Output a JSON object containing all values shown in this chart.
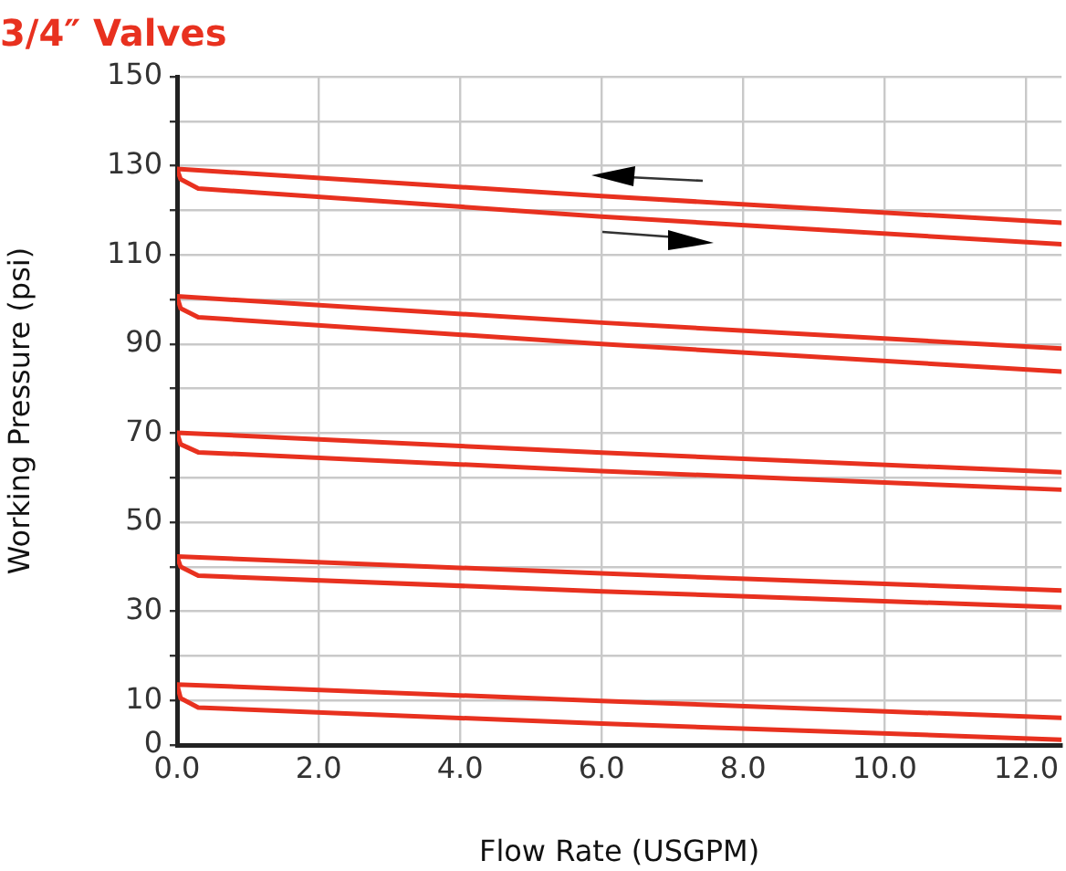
{
  "chart_data": {
    "type": "line",
    "title": "3/4″ Valves",
    "xlabel": "Flow Rate (USGPM)",
    "ylabel": "Working Pressure (psi)",
    "series": [
      {
        "color": "#e8311f",
        "x": [
          12.5,
          6,
          0,
          0.05,
          0.3,
          6,
          12.5
        ],
        "values": [
          117.2,
          123.2,
          129.3,
          127,
          124.9,
          118.6,
          112.4
        ]
      },
      {
        "color": "#e8311f",
        "x": [
          12.5,
          6,
          0,
          0.05,
          0.3,
          6,
          12.5
        ],
        "values": [
          89.0,
          94.8,
          100.7,
          98,
          96.0,
          90.0,
          83.8
        ]
      },
      {
        "color": "#e8311f",
        "x": [
          12.5,
          6,
          0,
          0.05,
          0.3,
          6,
          12.5
        ],
        "values": [
          61.2,
          65.6,
          70.1,
          67.5,
          65.7,
          61.5,
          57.3
        ]
      },
      {
        "color": "#e8311f",
        "x": [
          12.5,
          6,
          0,
          0.05,
          0.3,
          6,
          12.5
        ],
        "values": [
          34.7,
          38.5,
          42.3,
          40,
          38.0,
          34.5,
          30.9
        ]
      },
      {
        "color": "#e8311f",
        "x": [
          12.5,
          6,
          0,
          0.05,
          0.3,
          6,
          12.5
        ],
        "values": [
          6.1,
          9.9,
          13.6,
          10.5,
          8.4,
          4.8,
          1.2
        ]
      }
    ],
    "xlim": [
      0,
      12.5
    ],
    "xticks": [
      {
        "value": 0,
        "label": "0.0"
      },
      {
        "value": 2,
        "label": "2.0"
      },
      {
        "value": 4,
        "label": "4.0"
      },
      {
        "value": 6,
        "label": "6.0"
      },
      {
        "value": 8,
        "label": "8.0"
      },
      {
        "value": 10,
        "label": "10.0"
      },
      {
        "value": 12,
        "label": "12.0"
      }
    ],
    "ylim": [
      0,
      150
    ],
    "yticks": [
      0,
      10,
      {
        "value": 20,
        "label": null
      },
      30,
      {
        "value": 40,
        "label": null
      },
      50,
      {
        "value": 60,
        "label": null
      },
      70,
      {
        "value": 80,
        "label": null
      },
      90,
      {
        "value": 100,
        "label": null
      },
      110,
      {
        "value": 120,
        "label": null
      },
      130,
      {
        "value": 140,
        "label": null
      },
      150
    ],
    "grid": true,
    "legend": false,
    "marker": "none",
    "line_style": "solid"
  }
}
